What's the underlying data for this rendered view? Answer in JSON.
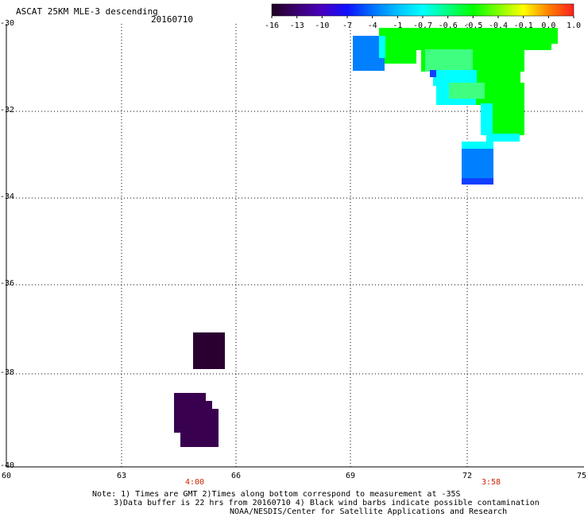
{
  "title": "ASCAT 25KM MLE-3 descending",
  "date": "20160710",
  "colorbar": {
    "labels": [
      "-16",
      "-13",
      "-10",
      "-7",
      "-4",
      "-1",
      "-0.7",
      "-0.6",
      "-0.5",
      "-0.4",
      "-0.1",
      "0.0",
      "1.0"
    ],
    "colors": [
      "#200020",
      "#3a0070",
      "#4800c0",
      "#1010ff",
      "#0070ff",
      "#00c0ff",
      "#00ffff",
      "#00ff80",
      "#00ff00",
      "#80ff00",
      "#ffff00",
      "#ff8000",
      "#ff2020"
    ]
  },
  "y_axis": {
    "labels": [
      "-30",
      "-32",
      "-34",
      "-36",
      "-38",
      "-40"
    ]
  },
  "x_axis": {
    "labels": [
      "60",
      "63",
      "66",
      "69",
      "72",
      "75"
    ]
  },
  "times": [
    "4:00",
    "3:58"
  ],
  "notes": [
    "Note: 1) Times are GMT 2)Times along bottom correspond to measurement at -35S",
    "3)Data buffer is 22 hrs from 20160710 4) Black wind barbs indicate possible contamination",
    "NOAA/NESDIS/Center for Satellite Applications and Research"
  ],
  "swath_colors": {
    "green": "#00ff00",
    "light_green": "#40ff80",
    "cyan": "#00ffff",
    "blue": "#0080ff",
    "dark_blue": "#1040ff",
    "deep_purple": "#2a0030",
    "purple": "#3a0050"
  }
}
